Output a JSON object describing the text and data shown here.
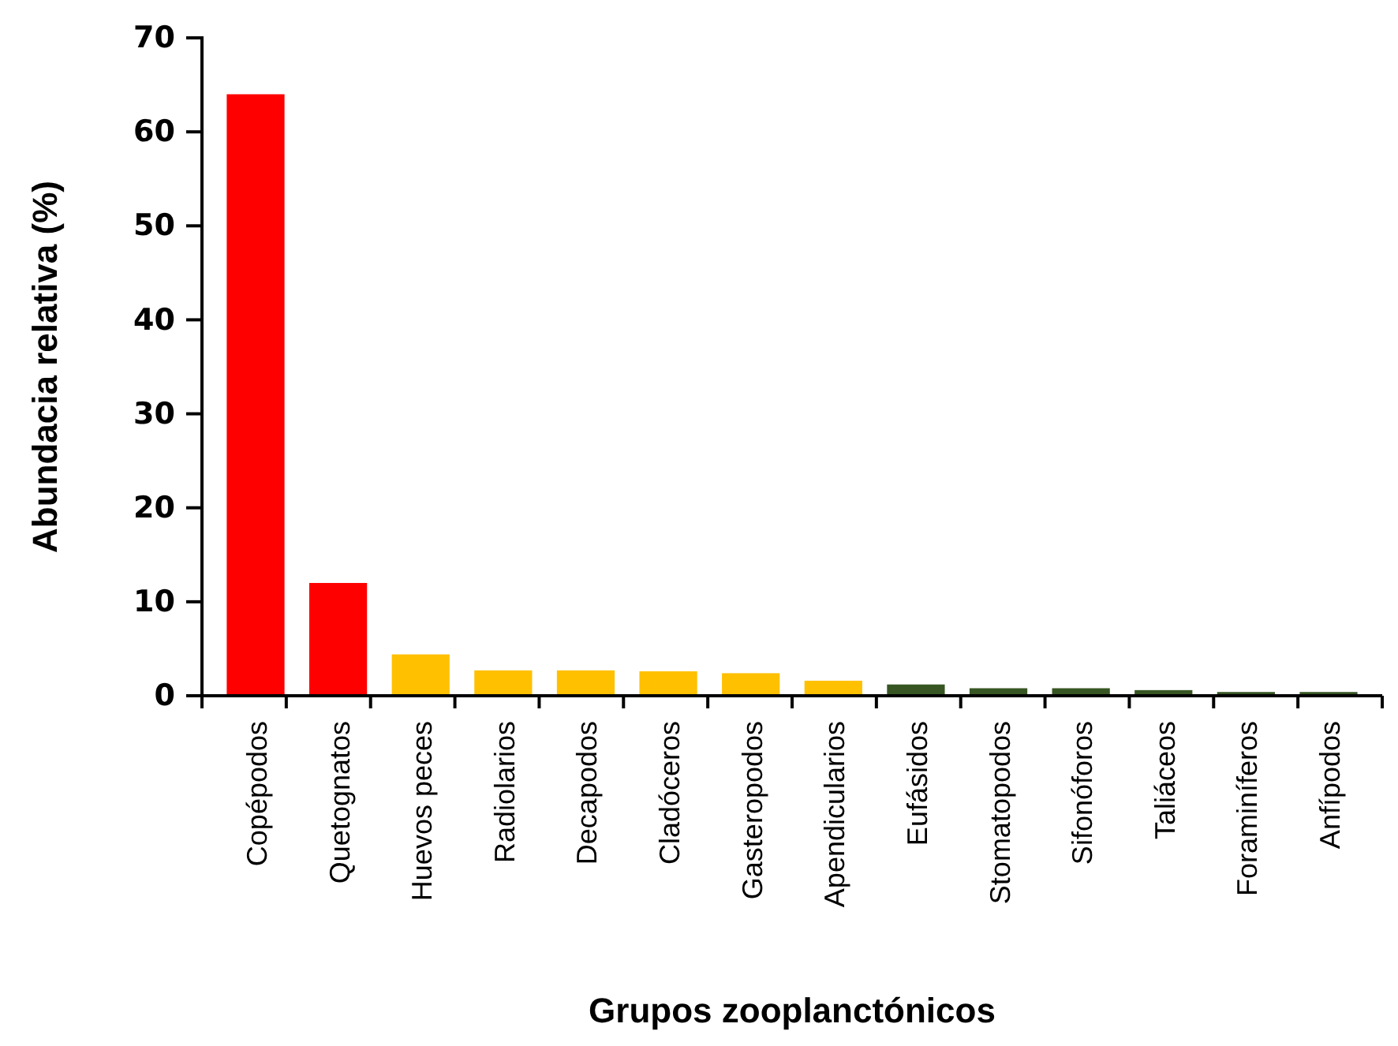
{
  "chart_data": {
    "type": "bar",
    "xlabel": "Grupos zooplanctónicos",
    "ylabel": "Abundacia relativa (%)",
    "categories": [
      "Copépodos",
      "Quetognatos",
      "Huevos peces",
      "Radiolarios",
      "Decapodos",
      "Cladóceros",
      "Gasteropodos",
      "Apendicularios",
      "Eufásidos",
      "Stomatopodos",
      "Sifonóforos",
      "Taliáceos",
      "Foraminíferos",
      "Anfípodos"
    ],
    "values": [
      64,
      12,
      4.4,
      2.7,
      2.7,
      2.6,
      2.4,
      1.6,
      1.2,
      0.8,
      0.8,
      0.6,
      0.4,
      0.4
    ],
    "colors": [
      "#ff0000",
      "#ff0000",
      "#ffc000",
      "#ffc000",
      "#ffc000",
      "#ffc000",
      "#ffc000",
      "#ffc000",
      "#375623",
      "#375623",
      "#375623",
      "#375623",
      "#375623",
      "#375623"
    ],
    "ylim": [
      0,
      70
    ],
    "yticks": [
      0,
      10,
      20,
      30,
      40,
      50,
      60,
      70
    ],
    "grid": false
  }
}
